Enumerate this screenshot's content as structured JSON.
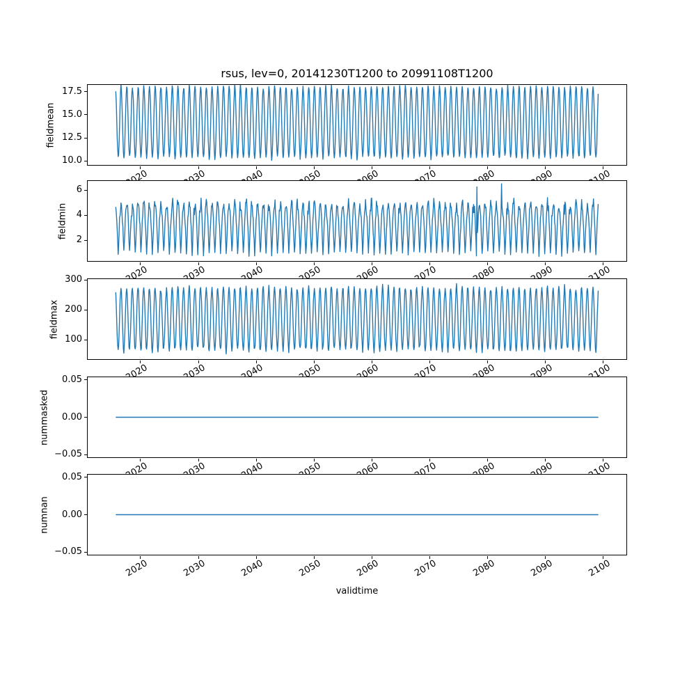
{
  "chart_data": {
    "type": "line",
    "title": "rsus, lev=0, 20141230T1200 to 20991108T1200",
    "xlabel": "validtime",
    "line_color": "#1f77b4",
    "background_color": "#ffffff",
    "grid": false,
    "legend": "none",
    "xlim": [
      2010.75,
      2104.1
    ],
    "xticks": [
      2020,
      2030,
      2040,
      2050,
      2060,
      2070,
      2080,
      2090,
      2100
    ],
    "xtick_labels": [
      "2020",
      "2030",
      "2040",
      "2050",
      "2060",
      "2070",
      "2080",
      "2090",
      "2100"
    ],
    "xtick_rotation_deg": 30,
    "x_start": 2015.0,
    "x_end": 2099.85,
    "points_per_year": 12,
    "subplots": [
      {
        "ylabel": "fieldmean",
        "ylim": [
          9.49,
          18.31
        ],
        "ytick_values": [
          10.0,
          12.5,
          15.0,
          17.5
        ],
        "ytick_labels": [
          "10.0",
          "12.5",
          "15.0",
          "17.5"
        ],
        "series": {
          "kind": "seasonal",
          "mean": 14.2,
          "amplitude": 3.9,
          "amp_jitter": 0.04,
          "noise": 0.16,
          "phase": 0.07,
          "seed": 3,
          "approx_min": 10.1,
          "approx_max": 18.4,
          "period_years": 1
        }
      },
      {
        "ylabel": "fieldmin",
        "ylim": [
          0.29,
          6.78
        ],
        "ytick_values": [
          2,
          4,
          6
        ],
        "ytick_labels": [
          "2",
          "4",
          "6"
        ],
        "series": {
          "kind": "seasonal_pow",
          "vmin": 0.8,
          "vrange": 4.1,
          "power": 0.55,
          "noise": 0.5,
          "phase": 0.07,
          "seed": 7,
          "approx_min": 0.6,
          "approx_max": 5.8,
          "period_years": 1,
          "spikes": [
            {
              "t": 2078.5,
              "v": 6.3
            },
            {
              "t": 2082.8,
              "v": 6.55
            }
          ]
        }
      },
      {
        "ylabel": "fieldmax",
        "ylim": [
          33,
          305
        ],
        "ytick_values": [
          100,
          200,
          300
        ],
        "ytick_labels": [
          "100",
          "200",
          "300"
        ],
        "series": {
          "kind": "seasonal",
          "mean": 170,
          "amplitude": 106,
          "amp_jitter": 0.06,
          "noise": 6,
          "phase": 0.09,
          "seed": 5,
          "approx_min": 55,
          "approx_max": 295,
          "period_years": 1
        }
      },
      {
        "ylabel": "nummasked",
        "ylim": [
          -0.0546,
          0.0546
        ],
        "ytick_values": [
          0.05,
          0.0,
          -0.05
        ],
        "ytick_labels": [
          "0.05",
          "0.00",
          "−0.05"
        ],
        "series": {
          "kind": "constant",
          "value": 0.0
        }
      },
      {
        "ylabel": "numnan",
        "ylim": [
          -0.0546,
          0.0546
        ],
        "ytick_values": [
          0.05,
          0.0,
          -0.05
        ],
        "ytick_labels": [
          "0.05",
          "0.00",
          "−0.05"
        ],
        "series": {
          "kind": "constant",
          "value": 0.0
        }
      }
    ]
  }
}
